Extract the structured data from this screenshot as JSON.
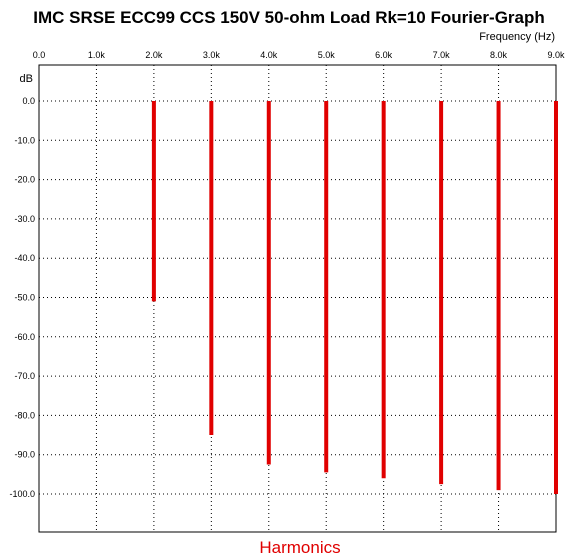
{
  "chart_data": {
    "type": "bar",
    "title": "IMC SRSE ECC99 CCS 150V 50-ohm Load Rk=10 Fourier-Graph",
    "xlabel": "Frequency  (Hz)",
    "ylabel": "dB",
    "footer_label": "Harmonics",
    "x_ticks": [
      0,
      1000,
      2000,
      3000,
      4000,
      5000,
      6000,
      7000,
      8000,
      9000
    ],
    "x_tick_labels": [
      "0.0",
      "1.0k",
      "2.0k",
      "3.0k",
      "4.0k",
      "5.0k",
      "6.0k",
      "7.0k",
      "8.0k",
      "9.0k"
    ],
    "y_ticks": [
      0,
      -10,
      -20,
      -30,
      -40,
      -50,
      -60,
      -70,
      -80,
      -90,
      -100
    ],
    "y_tick_labels": [
      "0.0",
      "-10.0",
      "-20.0",
      "-30.0",
      "-40.0",
      "-50.0",
      "-60.0",
      "-70.0",
      "-80.0",
      "-90.0",
      "-100.0"
    ],
    "xlim": [
      0,
      9000
    ],
    "ylim": [
      -110,
      0
    ],
    "grid": "dotted",
    "series": [
      {
        "color": "#e00000",
        "x": [
          2000,
          3000,
          4000,
          5000,
          6000,
          7000,
          8000,
          9000
        ],
        "values": [
          -51,
          -85,
          -92.5,
          -94.5,
          -96,
          -97.5,
          -99,
          -100
        ]
      }
    ]
  }
}
